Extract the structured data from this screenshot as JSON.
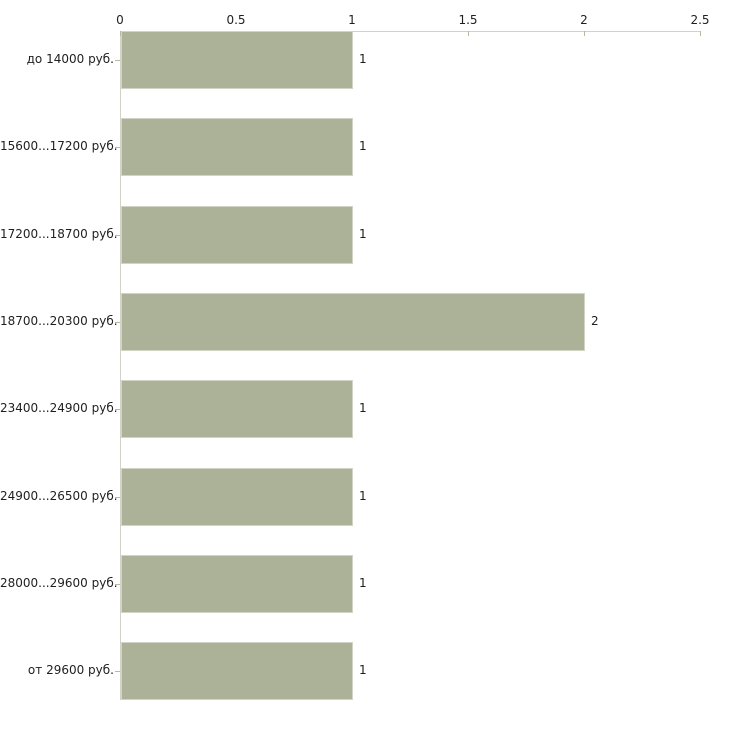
{
  "chart_data": {
    "type": "bar",
    "orientation": "horizontal",
    "title": "",
    "xlabel": "",
    "ylabel": "",
    "categories": [
      "до 14000 руб.",
      "15600...17200 руб.",
      "17200...18700 руб.",
      "18700...20300 руб.",
      "23400...24900 руб.",
      "24900...26500 руб.",
      "28000...29600 руб.",
      "от 29600 руб."
    ],
    "values": [
      1,
      1,
      1,
      2,
      1,
      1,
      1,
      1
    ],
    "value_labels": [
      "1",
      "1",
      "1",
      "2",
      "1",
      "1",
      "1",
      "1"
    ],
    "x_ticks": [
      0,
      0.5,
      1,
      1.5,
      2,
      2.5
    ],
    "x_tick_labels": [
      "0",
      "0.5",
      "1",
      "1.5",
      "2",
      "2.5"
    ],
    "xlim": [
      0,
      2.5
    ],
    "grid": false,
    "legend": false,
    "axis_position": "top",
    "colors": {
      "bar_fill": "#acb297",
      "bar_edge": "#d2d5c5",
      "axis_line": "#d2d2c8",
      "tick_mark": "#b7baa0",
      "text": "#1f1f1f",
      "background": "#ffffff"
    }
  }
}
